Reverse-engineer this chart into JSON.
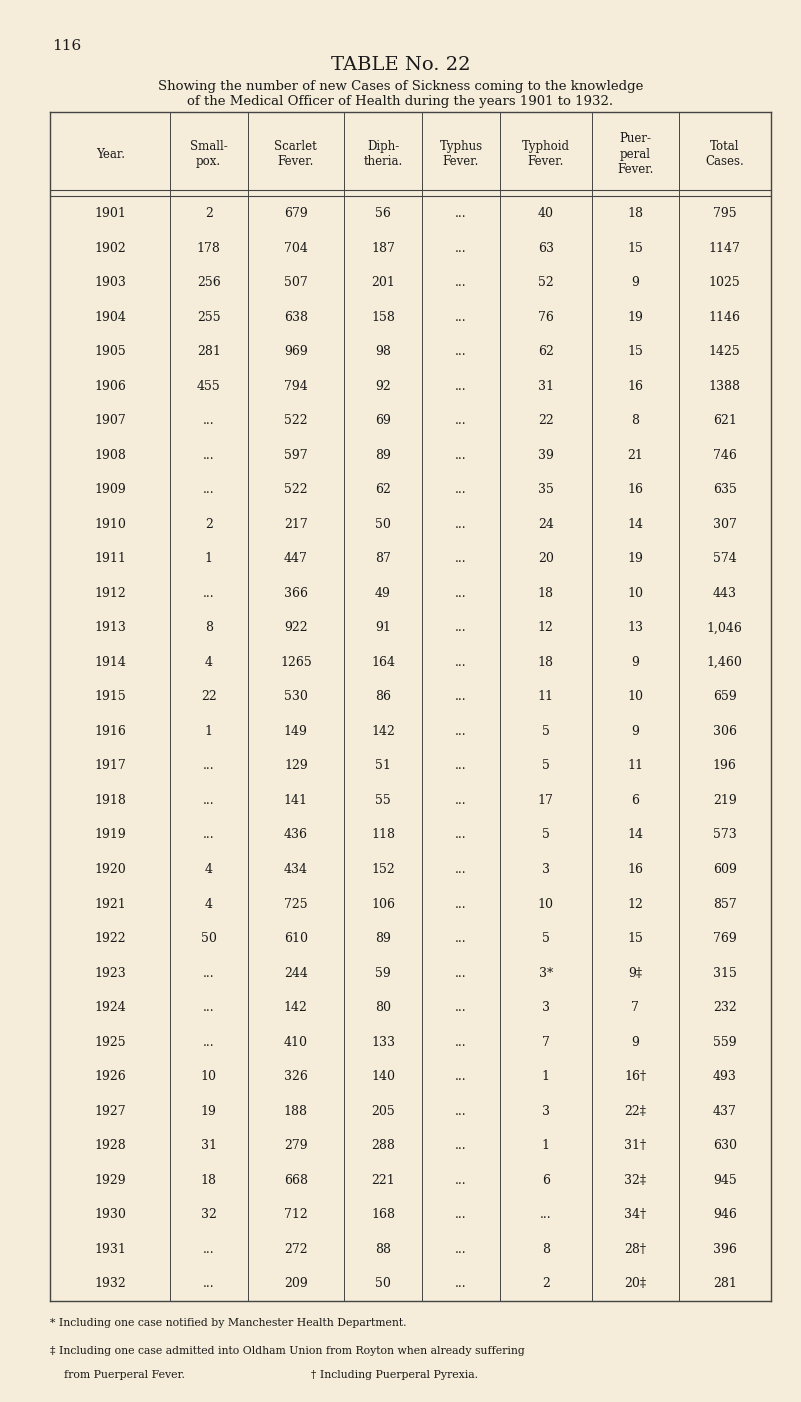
{
  "page_number": "116",
  "title": "TABLE No. 22",
  "subtitle_line1": "Showing the number of new Cases of Sickness coming to the knowledge",
  "subtitle_line2": "of the Medical Officer of Health during the years 1901 to 1932.",
  "headers": [
    "Year.",
    "Small-\npox.",
    "Scarlet\nFever.",
    "Diph-\ntheria.",
    "Typhus\nFever.",
    "Typhoid\nFever.",
    "Puer-\nperal\nFever.",
    "Total\nCases."
  ],
  "rows": [
    [
      "1901",
      "2",
      "679",
      "56",
      "...",
      "40",
      "18",
      "795"
    ],
    [
      "1902",
      "178",
      "704",
      "187",
      "...",
      "63",
      "15",
      "1147"
    ],
    [
      "1903",
      "256",
      "507",
      "201",
      "...",
      "52",
      "9",
      "1025"
    ],
    [
      "1904",
      "255",
      "638",
      "158",
      "...",
      "76",
      "19",
      "1146"
    ],
    [
      "1905",
      "281",
      "969",
      "98",
      "...",
      "62",
      "15",
      "1425"
    ],
    [
      "1906",
      "455",
      "794",
      "92",
      "...",
      "31",
      "16",
      "1388"
    ],
    [
      "1907",
      "...",
      "522",
      "69",
      "...",
      "22",
      "8",
      "621"
    ],
    [
      "1908",
      "...",
      "597",
      "89",
      "...",
      "39",
      "21",
      "746"
    ],
    [
      "1909",
      "...",
      "522",
      "62",
      "...",
      "35",
      "16",
      "635"
    ],
    [
      "1910",
      "2",
      "217",
      "50",
      "...",
      "24",
      "14",
      "307"
    ],
    [
      "1911",
      "1",
      "447",
      "87",
      "...",
      "20",
      "19",
      "574"
    ],
    [
      "1912",
      "...",
      "366",
      "49",
      "...",
      "18",
      "10",
      "443"
    ],
    [
      "1913",
      "8",
      "922",
      "91",
      "...",
      "12",
      "13",
      "1,046"
    ],
    [
      "1914",
      "4",
      "1265",
      "164",
      "...",
      "18",
      "9",
      "1,460"
    ],
    [
      "1915",
      "22",
      "530",
      "86",
      "...",
      "11",
      "10",
      "659"
    ],
    [
      "1916",
      "1",
      "149",
      "142",
      "...",
      "5",
      "9",
      "306"
    ],
    [
      "1917",
      "...",
      "129",
      "51",
      "...",
      "5",
      "11",
      "196"
    ],
    [
      "1918",
      "...",
      "141",
      "55",
      "...",
      "17",
      "6",
      "219"
    ],
    [
      "1919",
      "...",
      "436",
      "118",
      "...",
      "5",
      "14",
      "573"
    ],
    [
      "1920",
      "4",
      "434",
      "152",
      "...",
      "3",
      "16",
      "609"
    ],
    [
      "1921",
      "4",
      "725",
      "106",
      "...",
      "10",
      "12",
      "857"
    ],
    [
      "1922",
      "50",
      "610",
      "89",
      "...",
      "5",
      "15",
      "769"
    ],
    [
      "1923",
      "...",
      "244",
      "59",
      "...",
      "3*",
      "9‡",
      "315"
    ],
    [
      "1924",
      "...",
      "142",
      "80",
      "...",
      "3",
      "7",
      "232"
    ],
    [
      "1925",
      "...",
      "410",
      "133",
      "...",
      "7",
      "9",
      "559"
    ],
    [
      "1926",
      "10",
      "326",
      "140",
      "...",
      "1",
      "16†",
      "493"
    ],
    [
      "1927",
      "19",
      "188",
      "205",
      "...",
      "3",
      "22‡",
      "437"
    ],
    [
      "1928",
      "31",
      "279",
      "288",
      "...",
      "1",
      "31†",
      "630"
    ],
    [
      "1929",
      "18",
      "668",
      "221",
      "...",
      "6",
      "32‡",
      "945"
    ],
    [
      "1930",
      "32",
      "712",
      "168",
      "...",
      "...",
      "34†",
      "946"
    ],
    [
      "1931",
      "...",
      "272",
      "88",
      "...",
      "8",
      "28†",
      "396"
    ],
    [
      "1932",
      "...",
      "209",
      "50",
      "...",
      "2",
      "20‡",
      "281"
    ]
  ],
  "footnote1": "* Including one case notified by Manchester Health Department.",
  "footnote2": "‡ Including one case admitted into Oldham Union from Royton when already suffering",
  "footnote2b": "    from Puerperal Fever.                                    † Including Puerperal Pyrexia.",
  "bg_color": "#f5edda",
  "text_color": "#1a1a1a",
  "line_color": "#444444",
  "col_weights": [
    1.3,
    0.85,
    1.05,
    0.85,
    0.85,
    1.0,
    0.95,
    1.0
  ],
  "header_fontsize": 8.5,
  "cell_fontsize": 9.0,
  "footnote_fontsize": 7.8,
  "page_num_fontsize": 11,
  "title_fontsize": 14,
  "subtitle_fontsize": 9.5
}
